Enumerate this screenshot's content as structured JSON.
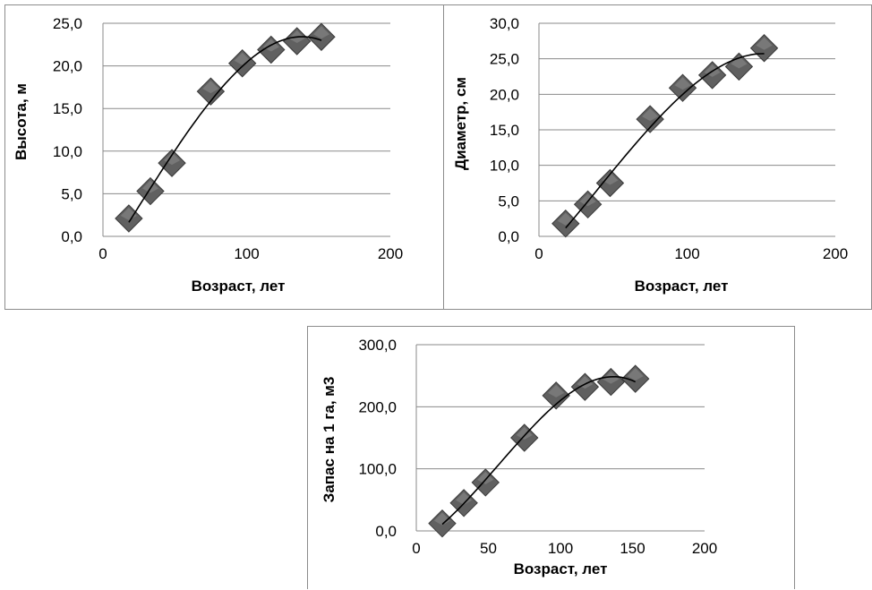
{
  "chart_data": [
    {
      "type": "scatter",
      "trendline": "polynomial",
      "xlabel": "Возраст, лет",
      "ylabel": "Высота, м",
      "xlim": [
        0,
        200
      ],
      "ylim": [
        0,
        25
      ],
      "xticks": [
        0,
        100,
        200
      ],
      "xtick_labels": [
        "0",
        "100",
        "200"
      ],
      "yticks": [
        0,
        5,
        10,
        15,
        20,
        25
      ],
      "ytick_labels": [
        "0,0",
        "5,0",
        "10,0",
        "15,0",
        "20,0",
        "25,0"
      ],
      "grid": "horizontal",
      "marker": "diamond",
      "marker_color": "#606060",
      "x": [
        18,
        33,
        48,
        75,
        97,
        117,
        135,
        152
      ],
      "y": [
        2.1,
        5.3,
        8.6,
        17.0,
        20.3,
        21.9,
        22.9,
        23.4
      ]
    },
    {
      "type": "scatter",
      "trendline": "polynomial",
      "xlabel": "Возраст, лет",
      "ylabel": "Диаметр, см",
      "xlim": [
        0,
        200
      ],
      "ylim": [
        0,
        30
      ],
      "xticks": [
        0,
        100,
        200
      ],
      "xtick_labels": [
        "0",
        "100",
        "200"
      ],
      "yticks": [
        0,
        5,
        10,
        15,
        20,
        25,
        30
      ],
      "ytick_labels": [
        "0,0",
        "5,0",
        "10,0",
        "15,0",
        "20,0",
        "25,0",
        "30,0"
      ],
      "grid": "horizontal",
      "marker": "diamond",
      "marker_color": "#606060",
      "x": [
        18,
        33,
        48,
        75,
        97,
        117,
        135,
        152
      ],
      "y": [
        1.8,
        4.5,
        7.5,
        16.5,
        20.9,
        22.7,
        23.9,
        26.5
      ]
    },
    {
      "type": "scatter",
      "trendline": "polynomial",
      "xlabel": "Возраст, лет",
      "ylabel": "Запас на 1 га, м3",
      "xlim": [
        0,
        200
      ],
      "ylim": [
        0,
        300
      ],
      "xticks": [
        0,
        50,
        100,
        150,
        200
      ],
      "xtick_labels": [
        "0",
        "50",
        "100",
        "150",
        "200"
      ],
      "yticks": [
        0,
        100,
        200,
        300
      ],
      "ytick_labels": [
        "0,0",
        "100,0",
        "200,0",
        "300,0"
      ],
      "grid": "horizontal",
      "marker": "diamond",
      "marker_color": "#606060",
      "x": [
        18,
        33,
        48,
        75,
        97,
        117,
        135,
        152
      ],
      "y": [
        12,
        45,
        78,
        150,
        218,
        232,
        240,
        245
      ]
    }
  ]
}
